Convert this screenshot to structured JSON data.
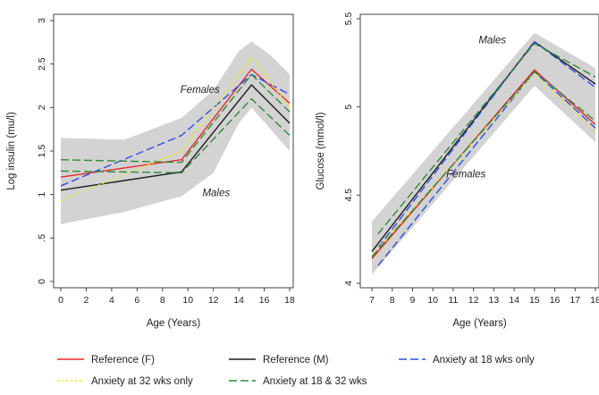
{
  "chart_data": [
    {
      "type": "line",
      "xlabel": "Age (Years)",
      "ylabel": "Log insulin (mu/l)",
      "xlim": [
        0,
        18
      ],
      "ylim": [
        0,
        3
      ],
      "xticks": [
        "0",
        "2",
        "4",
        "6",
        "8",
        "10",
        "12",
        "14",
        "16",
        "18"
      ],
      "xtick_values": [
        0,
        2,
        4,
        6,
        8,
        10,
        12,
        14,
        16,
        18
      ],
      "yticks": [
        "0",
        ".5",
        "1",
        "1.5",
        "2",
        "2.5",
        "3"
      ],
      "ytick_values": [
        0,
        0.5,
        1,
        1.5,
        2,
        2.5,
        3
      ],
      "grid": false,
      "annotations": [
        {
          "text": "Females",
          "x": 12.5,
          "y": 2.17
        },
        {
          "text": "Males",
          "x": 13.3,
          "y": 0.98
        }
      ],
      "band": {
        "x": [
          0,
          5,
          9.5,
          12,
          14,
          15,
          16.5,
          18
        ],
        "upper": [
          1.65,
          1.63,
          1.88,
          2.2,
          2.65,
          2.76,
          2.6,
          2.38
        ],
        "lower": [
          0.66,
          0.8,
          0.98,
          1.25,
          1.82,
          2.0,
          1.75,
          1.5
        ]
      },
      "series": [
        {
          "name": "Reference (F)",
          "color": "#e8262a",
          "dash": "solid",
          "x": [
            0,
            9.5,
            15,
            18
          ],
          "y": [
            1.2,
            1.4,
            2.44,
            2.05
          ]
        },
        {
          "name": "Reference (M)",
          "color": "#1a1a1a",
          "dash": "solid",
          "x": [
            0,
            9.5,
            15,
            18
          ],
          "y": [
            1.05,
            1.26,
            2.26,
            1.82
          ]
        },
        {
          "name": "Anxiety at 18 wks only",
          "color": "#2f4fe0",
          "dash": "long",
          "x": [
            0,
            9.5,
            15,
            18
          ],
          "y": [
            1.1,
            1.68,
            2.38,
            2.15
          ]
        },
        {
          "name": "Anxiety at 32 wks only",
          "color": "#ecec20",
          "dash": "dot",
          "x": [
            0,
            9.5,
            15,
            18
          ],
          "y": [
            0.93,
            1.5,
            2.58,
            2.0
          ]
        },
        {
          "name": "Anxiety at 18 & 32 wks",
          "color": "#2e8a36",
          "dash": "long",
          "x": [
            0,
            9.5,
            15,
            18
          ],
          "y": [
            1.4,
            1.37,
            2.38,
            1.95
          ]
        },
        {
          "name": "",
          "color": "#2e8a36",
          "dash": "long",
          "x": [
            0,
            9.5,
            15,
            18
          ],
          "y": [
            1.27,
            1.25,
            2.1,
            1.68
          ]
        }
      ]
    },
    {
      "type": "line",
      "xlabel": "Age (Years)",
      "ylabel": "Glucose (mmol/l)",
      "xlim": [
        7,
        18
      ],
      "ylim": [
        4,
        5.5
      ],
      "xticks": [
        "7",
        "8",
        "9",
        "10",
        "11",
        "12",
        "13",
        "14",
        "15",
        "16",
        "17",
        "18"
      ],
      "xtick_values": [
        7,
        8,
        9,
        10,
        11,
        12,
        13,
        14,
        15,
        16,
        17,
        18
      ],
      "yticks": [
        "4",
        "4.5",
        "5",
        "5.5"
      ],
      "ytick_values": [
        4,
        4.5,
        5,
        5.5
      ],
      "grid": false,
      "annotations": [
        {
          "text": "Males",
          "x": 13.6,
          "y": 5.36
        },
        {
          "text": "Females",
          "x": 12.6,
          "y": 4.6
        }
      ],
      "band": {
        "x": [
          7,
          15,
          18
        ],
        "upper": [
          4.35,
          5.42,
          5.22
        ],
        "lower": [
          4.05,
          5.12,
          4.8
        ]
      },
      "series": [
        {
          "name": "Reference (F)",
          "color": "#e8262a",
          "dash": "solid",
          "x": [
            7,
            15,
            18
          ],
          "y": [
            4.14,
            5.21,
            4.9
          ]
        },
        {
          "name": "Reference (M)",
          "color": "#1a1a1a",
          "dash": "solid",
          "x": [
            7,
            15,
            18
          ],
          "y": [
            4.18,
            5.37,
            5.13
          ]
        },
        {
          "name": "Anxiety at 18 wks only",
          "color": "#2f4fe0",
          "dash": "long",
          "x": [
            7.3,
            15,
            18
          ],
          "y": [
            4.1,
            5.2,
            4.88
          ]
        },
        {
          "name": "Anxiety at 18 wks only",
          "color": "#2f4fe0",
          "dash": "long",
          "x": [
            7.3,
            15,
            18
          ],
          "y": [
            4.2,
            5.37,
            5.11
          ]
        },
        {
          "name": "Anxiety at 32 wks only",
          "color": "#ecec20",
          "dash": "dot",
          "x": [
            7,
            15,
            18
          ],
          "y": [
            4.16,
            5.19,
            4.86
          ]
        },
        {
          "name": "Anxiety at 18 & 32 wks",
          "color": "#2e8a36",
          "dash": "long",
          "x": [
            7.3,
            15,
            18
          ],
          "y": [
            4.28,
            5.36,
            5.17
          ]
        },
        {
          "name": "Anxiety at 18 & 32 wks",
          "color": "#2e8a36",
          "dash": "long",
          "x": [
            7,
            15,
            18
          ],
          "y": [
            4.15,
            5.2,
            4.92
          ]
        }
      ]
    }
  ],
  "legend": {
    "placement": "bottom",
    "items": [
      {
        "label": "Reference (F)",
        "color": "#e8262a",
        "dash": "solid"
      },
      {
        "label": "Reference (M)",
        "color": "#1a1a1a",
        "dash": "solid"
      },
      {
        "label": "Anxiety at 18 wks only",
        "color": "#2f4fe0",
        "dash": "long"
      },
      {
        "label": "Anxiety at 32 wks only",
        "color": "#ecec20",
        "dash": "dot"
      },
      {
        "label": "Anxiety at 18 & 32 wks",
        "color": "#2e8a36",
        "dash": "long"
      }
    ]
  }
}
